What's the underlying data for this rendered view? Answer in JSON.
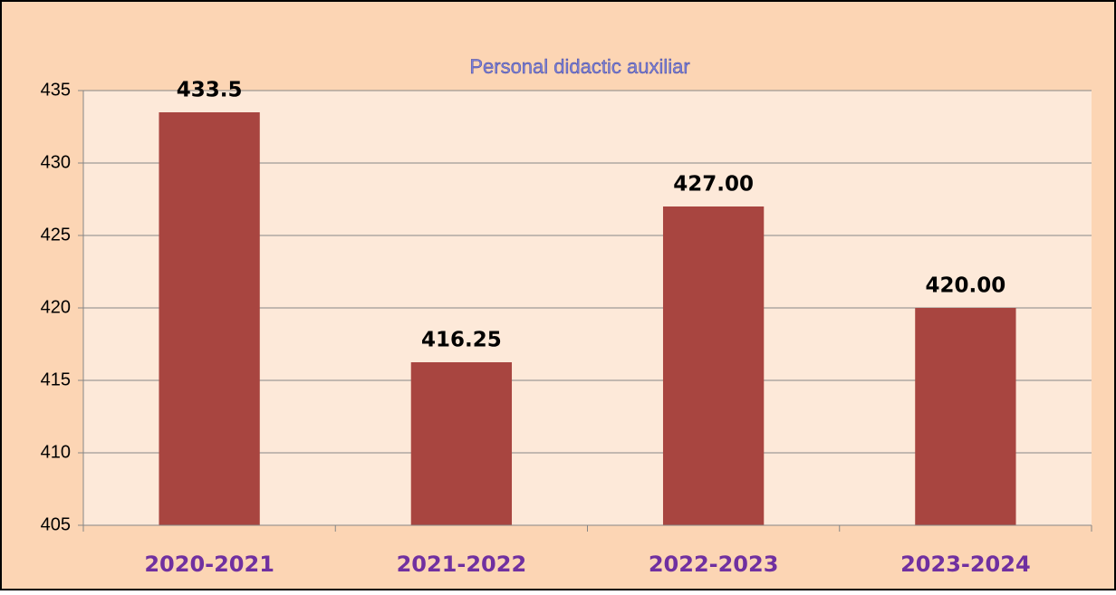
{
  "chart_data": {
    "type": "bar",
    "title": "Personal didactic auxiliar",
    "categories": [
      "2020-2021",
      "2021-2022",
      "2022-2023",
      "2023-2024"
    ],
    "values": [
      433.5,
      416.25,
      427,
      420
    ],
    "value_labels": [
      "433.5",
      "416.25",
      "427.00",
      "420.00"
    ],
    "color": "#a84540",
    "ylim": [
      405,
      435
    ],
    "yticks": [
      405,
      410,
      415,
      420,
      425,
      430,
      435
    ],
    "grid": true
  }
}
